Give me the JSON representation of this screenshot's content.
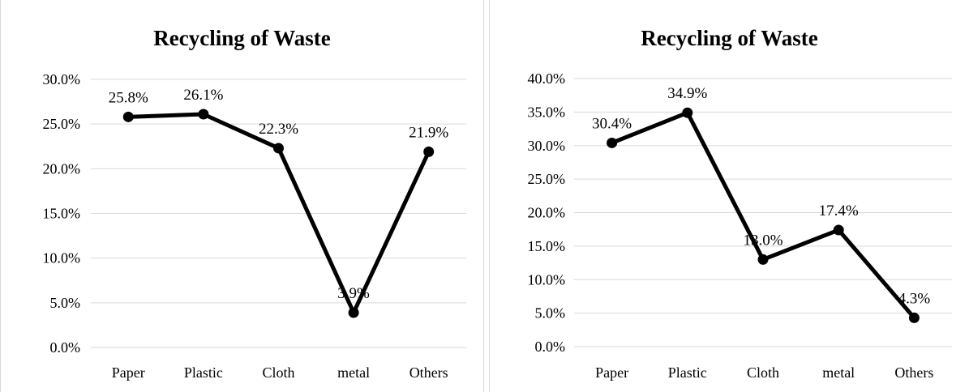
{
  "chart_data": [
    {
      "type": "line",
      "title": "Recycling of Waste",
      "categories": [
        "Paper",
        "Plastic",
        "Cloth",
        "metal",
        "Others"
      ],
      "values": [
        25.8,
        26.1,
        22.3,
        3.9,
        21.9
      ],
      "data_labels": [
        "25.8%",
        "26.1%",
        "22.3%",
        "3.9%",
        "21.9%"
      ],
      "y_ticks": [
        "0.0%",
        "5.0%",
        "10.0%",
        "15.0%",
        "20.0%",
        "25.0%",
        "30.0%"
      ],
      "ylim": [
        0,
        30
      ],
      "y_step": 5,
      "grid": true,
      "legend": "none",
      "line_color": "#000000",
      "grid_color": "#d9d9d9"
    },
    {
      "type": "line",
      "title": "Recycling of Waste",
      "categories": [
        "Paper",
        "Plastic",
        "Cloth",
        "metal",
        "Others"
      ],
      "values": [
        30.4,
        34.9,
        13.0,
        17.4,
        4.3
      ],
      "data_labels": [
        "30.4%",
        "34.9%",
        "13.0%",
        "17.4%",
        "4.3%"
      ],
      "y_ticks": [
        "0.0%",
        "5.0%",
        "10.0%",
        "15.0%",
        "20.0%",
        "25.0%",
        "30.0%",
        "35.0%",
        "40.0%"
      ],
      "ylim": [
        0,
        40
      ],
      "y_step": 5,
      "grid": true,
      "legend": "none",
      "line_color": "#000000",
      "grid_color": "#d9d9d9"
    }
  ]
}
